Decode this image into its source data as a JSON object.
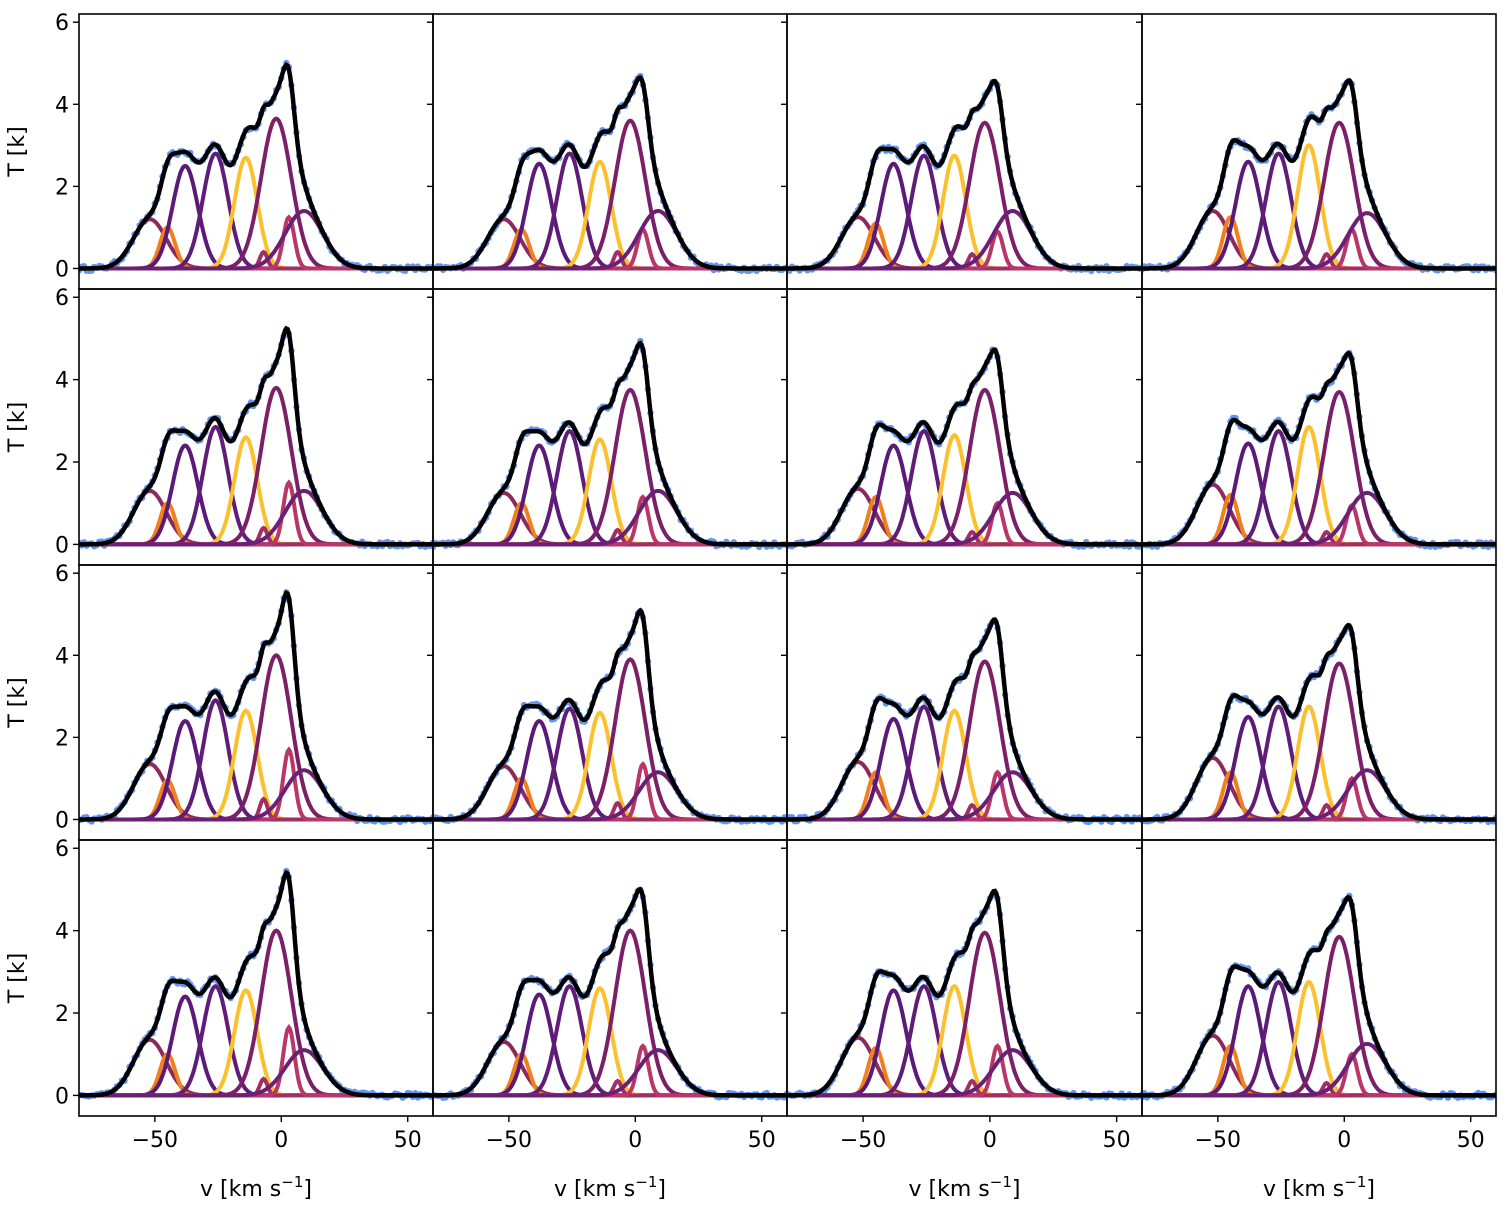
{
  "figure": {
    "xlabel": "v [km s",
    "xlabel_sup": "−1",
    "xlabel_end": "]",
    "ylabel": "T [k]",
    "xticks": [
      "−50",
      "0",
      "50"
    ],
    "yticks": [
      "0",
      "2",
      "4",
      "6"
    ]
  },
  "chart_data": {
    "type": "line",
    "layout": "4x4 grid of panels with shared axes",
    "xlabel": "v [km s⁻¹]",
    "ylabel": "T [k]",
    "xlim": [
      -80,
      60
    ],
    "ylim": [
      -0.5,
      6.2
    ],
    "xticks": [
      -50,
      0,
      50
    ],
    "yticks": [
      0,
      2,
      4,
      6
    ],
    "grid": false,
    "legend": "none",
    "series_styles": {
      "observed": {
        "color": "#6495ed",
        "style": "points"
      },
      "total_fit": {
        "color": "#000000",
        "style": "thick line"
      },
      "baseline": {
        "color": "#fff3a0"
      }
    },
    "component_colors": [
      "#8c2a5c",
      "#f07f1c",
      "#5b1a78",
      "#5f1d78",
      "#fbc02d",
      "#a12f64",
      "#7b2068",
      "#b83668",
      "#6c2073"
    ],
    "component_centers": [
      -52,
      -45,
      -38,
      -26,
      -14,
      -7,
      -2,
      3,
      9
    ],
    "component_widths": [
      6.5,
      3.0,
      5.0,
      5.0,
      4.5,
      1.5,
      6.0,
      2.2,
      7.5
    ],
    "panels": [
      {
        "row": 1,
        "col": 1,
        "amplitudes": [
          1.2,
          1.0,
          2.5,
          2.8,
          2.7,
          0.4,
          3.65,
          1.25,
          1.4
        ]
      },
      {
        "row": 1,
        "col": 2,
        "amplitudes": [
          1.2,
          0.95,
          2.55,
          2.8,
          2.6,
          0.4,
          3.6,
          0.95,
          1.4
        ]
      },
      {
        "row": 1,
        "col": 3,
        "amplitudes": [
          1.25,
          1.1,
          2.55,
          2.75,
          2.75,
          0.35,
          3.55,
          0.9,
          1.4
        ]
      },
      {
        "row": 1,
        "col": 4,
        "amplitudes": [
          1.4,
          1.25,
          2.6,
          2.8,
          3.0,
          0.35,
          3.55,
          0.95,
          1.35
        ]
      },
      {
        "row": 2,
        "col": 1,
        "amplitudes": [
          1.3,
          1.0,
          2.4,
          2.85,
          2.6,
          0.4,
          3.8,
          1.5,
          1.3
        ]
      },
      {
        "row": 2,
        "col": 2,
        "amplitudes": [
          1.25,
          1.0,
          2.4,
          2.75,
          2.55,
          0.35,
          3.75,
          1.15,
          1.3
        ]
      },
      {
        "row": 2,
        "col": 3,
        "amplitudes": [
          1.35,
          1.15,
          2.4,
          2.75,
          2.65,
          0.3,
          3.75,
          1.0,
          1.25
        ]
      },
      {
        "row": 2,
        "col": 4,
        "amplitudes": [
          1.45,
          1.2,
          2.45,
          2.75,
          2.85,
          0.3,
          3.7,
          0.95,
          1.25
        ]
      },
      {
        "row": 3,
        "col": 1,
        "amplitudes": [
          1.35,
          0.95,
          2.4,
          2.9,
          2.65,
          0.5,
          4.0,
          1.7,
          1.2
        ]
      },
      {
        "row": 3,
        "col": 2,
        "amplitudes": [
          1.3,
          1.0,
          2.4,
          2.7,
          2.6,
          0.4,
          3.9,
          1.35,
          1.15
        ]
      },
      {
        "row": 3,
        "col": 3,
        "amplitudes": [
          1.4,
          1.15,
          2.45,
          2.75,
          2.65,
          0.35,
          3.85,
          1.15,
          1.15
        ]
      },
      {
        "row": 3,
        "col": 4,
        "amplitudes": [
          1.5,
          1.15,
          2.5,
          2.75,
          2.75,
          0.35,
          3.8,
          1.0,
          1.2
        ]
      },
      {
        "row": 4,
        "col": 1,
        "amplitudes": [
          1.35,
          1.0,
          2.4,
          2.65,
          2.55,
          0.4,
          4.0,
          1.65,
          1.1
        ]
      },
      {
        "row": 4,
        "col": 2,
        "amplitudes": [
          1.3,
          1.0,
          2.45,
          2.65,
          2.6,
          0.35,
          4.0,
          1.2,
          1.1
        ]
      },
      {
        "row": 4,
        "col": 3,
        "amplitudes": [
          1.4,
          1.15,
          2.55,
          2.65,
          2.65,
          0.35,
          3.95,
          1.2,
          1.1
        ]
      },
      {
        "row": 4,
        "col": 4,
        "amplitudes": [
          1.45,
          1.2,
          2.65,
          2.75,
          2.75,
          0.3,
          3.85,
          1.0,
          1.25
        ]
      }
    ]
  }
}
